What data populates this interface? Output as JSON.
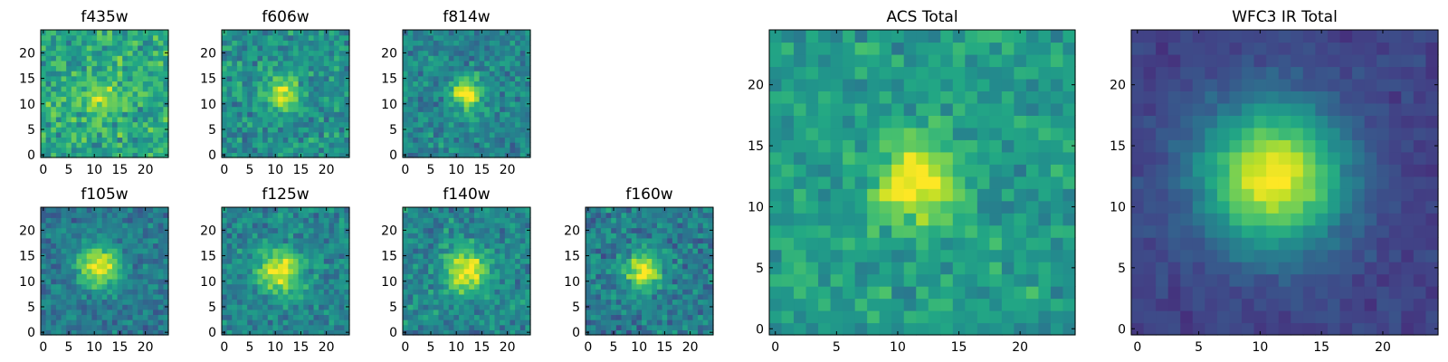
{
  "figure": {
    "description": "Multi-band postage stamp cutouts"
  },
  "colormap": {
    "name": "viridis",
    "low": "#440154",
    "mid": "#21918c",
    "high": "#fde725"
  },
  "chart_data": [
    {
      "id": "f435w",
      "type": "heatmap",
      "title": "f435w",
      "grid_size": 25,
      "xlim": [
        0,
        25
      ],
      "ylim": [
        0,
        25
      ],
      "xticks": [
        0,
        5,
        10,
        15,
        20
      ],
      "yticks": [
        0,
        5,
        10,
        15,
        20
      ],
      "source_peak": [
        11,
        11
      ],
      "source_amplitude": 0.25,
      "source_width": 2.5,
      "background": 0.6,
      "noise": 0.25,
      "seed": 11
    },
    {
      "id": "f606w",
      "type": "heatmap",
      "title": "f606w",
      "grid_size": 25,
      "xlim": [
        0,
        25
      ],
      "ylim": [
        0,
        25
      ],
      "xticks": [
        0,
        5,
        10,
        15,
        20
      ],
      "yticks": [
        0,
        5,
        10,
        15,
        20
      ],
      "source_peak": [
        11,
        12
      ],
      "source_amplitude": 0.45,
      "source_width": 2.2,
      "background": 0.5,
      "noise": 0.22,
      "seed": 23
    },
    {
      "id": "f814w",
      "type": "heatmap",
      "title": "f814w",
      "grid_size": 25,
      "xlim": [
        0,
        25
      ],
      "ylim": [
        0,
        25
      ],
      "xticks": [
        0,
        5,
        10,
        15,
        20
      ],
      "yticks": [
        0,
        5,
        10,
        15,
        20
      ],
      "source_peak": [
        12,
        12
      ],
      "source_amplitude": 0.55,
      "source_width": 2.2,
      "background": 0.45,
      "noise": 0.2,
      "seed": 37
    },
    {
      "id": "acs-total",
      "type": "heatmap",
      "title": "ACS Total",
      "grid_size": 25,
      "xlim": [
        0,
        25
      ],
      "ylim": [
        0,
        25
      ],
      "xticks": [
        0,
        5,
        10,
        15,
        20
      ],
      "yticks": [
        0,
        5,
        10,
        15,
        20
      ],
      "source_peak": [
        11.5,
        12
      ],
      "source_amplitude": 0.5,
      "source_width": 2.3,
      "background": 0.55,
      "noise": 0.18,
      "seed": 53
    },
    {
      "id": "f105w",
      "type": "heatmap",
      "title": "f105w",
      "grid_size": 25,
      "xlim": [
        0,
        25
      ],
      "ylim": [
        0,
        25
      ],
      "xticks": [
        0,
        5,
        10,
        15,
        20
      ],
      "yticks": [
        0,
        5,
        10,
        15,
        20
      ],
      "source_peak": [
        11,
        13
      ],
      "source_amplitude": 0.6,
      "source_width": 2.8,
      "background": 0.4,
      "noise": 0.18,
      "seed": 71
    },
    {
      "id": "f125w",
      "type": "heatmap",
      "title": "f125w",
      "grid_size": 25,
      "xlim": [
        0,
        25
      ],
      "ylim": [
        0,
        25
      ],
      "xticks": [
        0,
        5,
        10,
        15,
        20
      ],
      "yticks": [
        0,
        5,
        10,
        15,
        20
      ],
      "source_peak": [
        11,
        12
      ],
      "source_amplitude": 0.55,
      "source_width": 3.0,
      "background": 0.45,
      "noise": 0.2,
      "seed": 89
    },
    {
      "id": "f140w",
      "type": "heatmap",
      "title": "f140w",
      "grid_size": 25,
      "xlim": [
        0,
        25
      ],
      "ylim": [
        0,
        25
      ],
      "xticks": [
        0,
        5,
        10,
        15,
        20
      ],
      "yticks": [
        0,
        5,
        10,
        15,
        20
      ],
      "source_peak": [
        12,
        12
      ],
      "source_amplitude": 0.55,
      "source_width": 3.0,
      "background": 0.45,
      "noise": 0.2,
      "seed": 97
    },
    {
      "id": "f160w",
      "type": "heatmap",
      "title": "f160w",
      "grid_size": 25,
      "xlim": [
        0,
        25
      ],
      "ylim": [
        0,
        25
      ],
      "xticks": [
        0,
        5,
        10,
        15,
        20
      ],
      "yticks": [
        0,
        5,
        10,
        15,
        20
      ],
      "source_peak": [
        11,
        12
      ],
      "source_amplitude": 0.6,
      "source_width": 2.4,
      "background": 0.42,
      "noise": 0.22,
      "seed": 113
    },
    {
      "id": "wfc3-ir-total",
      "type": "heatmap",
      "title": "WFC3 IR Total",
      "grid_size": 25,
      "xlim": [
        0,
        25
      ],
      "ylim": [
        0,
        25
      ],
      "xticks": [
        0,
        5,
        10,
        15,
        20
      ],
      "yticks": [
        0,
        5,
        10,
        15,
        20
      ],
      "source_peak": [
        11,
        12.5
      ],
      "source_amplitude": 0.8,
      "source_width": 4.0,
      "background": 0.2,
      "noise": 0.07,
      "seed": 131
    }
  ]
}
